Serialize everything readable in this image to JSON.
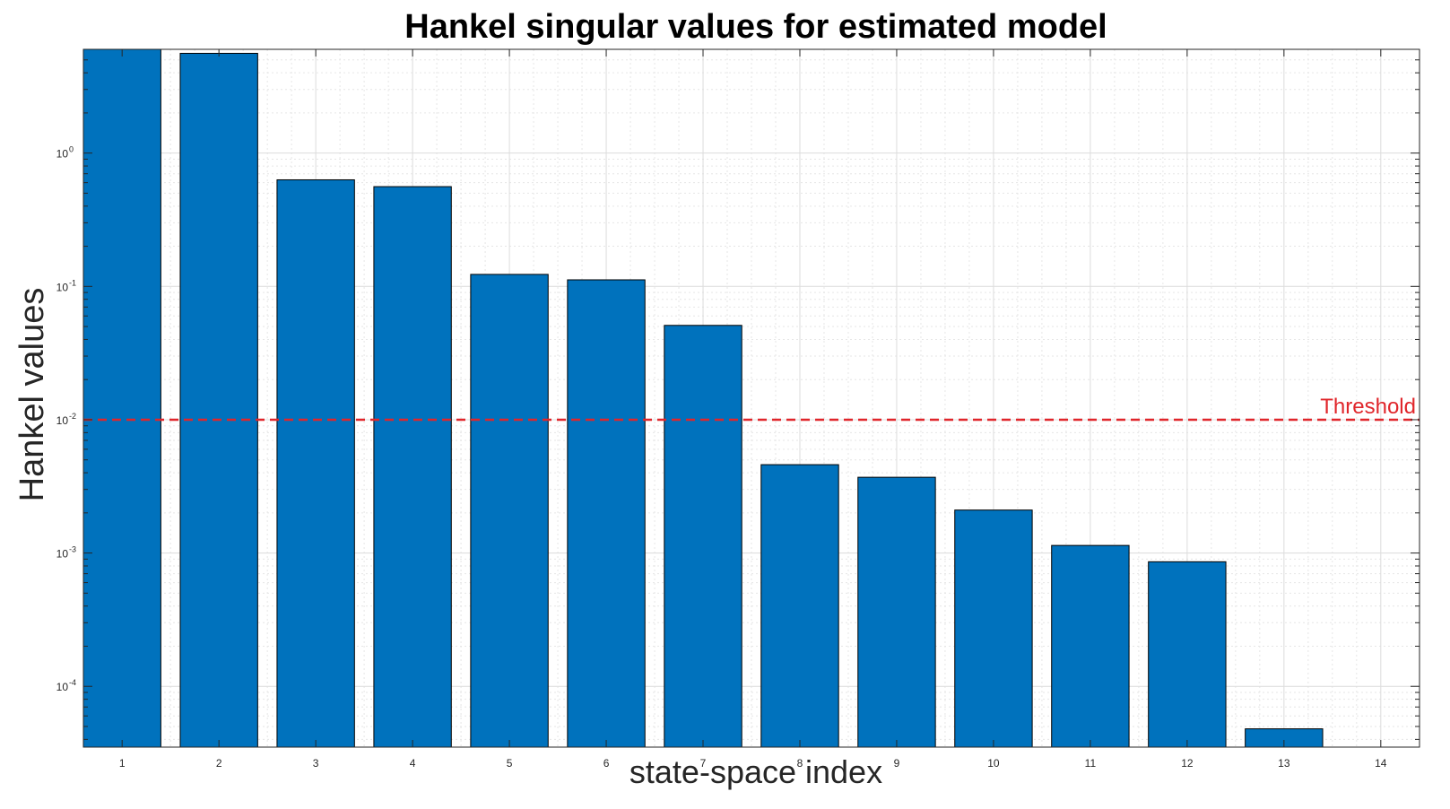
{
  "chart_data": {
    "type": "bar",
    "title": "Hankel singular values for estimated model",
    "xlabel": "state-space index",
    "ylabel": "Hankel values",
    "yscale": "log",
    "ylim": [
      3.5e-05,
      6
    ],
    "xlim": [
      0.6,
      14.4
    ],
    "grid": "on (major and minor)",
    "categories": [
      "1",
      "2",
      "3",
      "4",
      "5",
      "6",
      "7",
      "8",
      "9",
      "10",
      "11",
      "12",
      "13",
      "14"
    ],
    "values": [
      9.5,
      5.6,
      0.63,
      0.56,
      0.123,
      0.112,
      0.051,
      0.0046,
      0.0037,
      0.0021,
      0.00114,
      0.00086,
      4.8e-05,
      null
    ],
    "y_tick_labels": [
      {
        "value": 1,
        "base": "10",
        "exp": "0"
      },
      {
        "value": 0.1,
        "base": "10",
        "exp": "-1"
      },
      {
        "value": 0.01,
        "base": "10",
        "exp": "-2"
      },
      {
        "value": 0.001,
        "base": "10",
        "exp": "-3"
      },
      {
        "value": 0.0001,
        "base": "10",
        "exp": "-4"
      }
    ],
    "threshold": {
      "value": 0.01,
      "label": "Threshold",
      "color": "#e0262b",
      "style": "dashed"
    },
    "colors": {
      "bar": "#0072bd",
      "bar_edge": "#000000",
      "grid": "#dcdcdc",
      "axes": "#262626"
    }
  }
}
